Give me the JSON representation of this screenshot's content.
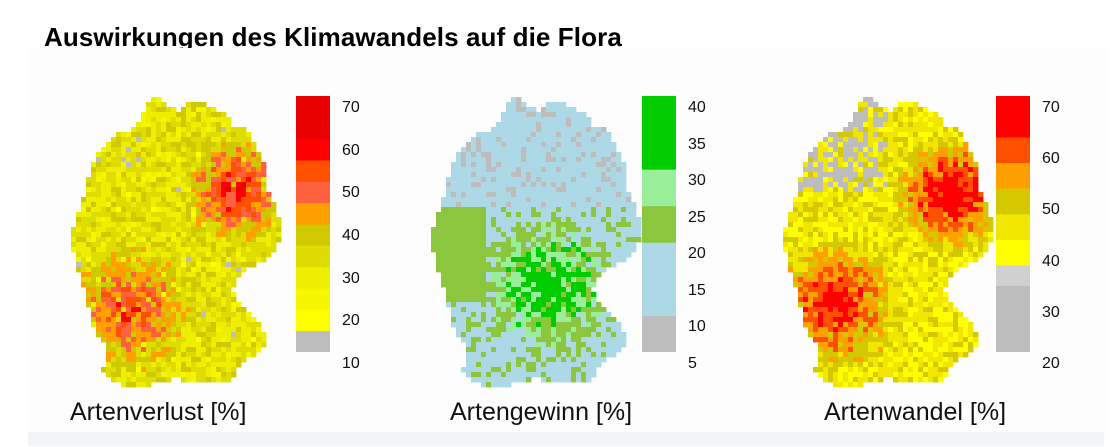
{
  "title": "Auswirkungen des Klimawandels auf die Flora",
  "maps": [
    {
      "caption": "Artenverlust [%]",
      "colormap": {
        "scale_min": 10,
        "scale_max": 70,
        "tick_labels": [
          "70",
          "60",
          "50",
          "40",
          "30",
          "20",
          "10"
        ],
        "classes": [
          {
            "from": 10,
            "to": 15,
            "color": "#bdbdbd"
          },
          {
            "from": 15,
            "to": 20,
            "color": "#ffff00"
          },
          {
            "from": 20,
            "to": 25,
            "color": "#f6f600"
          },
          {
            "from": 25,
            "to": 30,
            "color": "#eeee00"
          },
          {
            "from": 30,
            "to": 35,
            "color": "#dedc00"
          },
          {
            "from": 35,
            "to": 40,
            "color": "#d0c800"
          },
          {
            "from": 40,
            "to": 45,
            "color": "#ffa000"
          },
          {
            "from": 45,
            "to": 50,
            "color": "#ff6040"
          },
          {
            "from": 50,
            "to": 55,
            "color": "#ff5000"
          },
          {
            "from": 55,
            "to": 60,
            "color": "#ff0000"
          },
          {
            "from": 60,
            "to": 70,
            "color": "#e80000"
          }
        ]
      }
    },
    {
      "caption": "Artengewinn [%]",
      "colormap": {
        "scale_min": 5,
        "scale_max": 40,
        "tick_labels": [
          "40",
          "35",
          "30",
          "25",
          "20",
          "15",
          "10",
          "5"
        ],
        "classes": [
          {
            "from": 2,
            "to": 10,
            "color": "#bdbdbd"
          },
          {
            "from": 10,
            "to": 20,
            "color": "#add8e6"
          },
          {
            "from": 20,
            "to": 25,
            "color": "#8cc63f"
          },
          {
            "from": 25,
            "to": 30,
            "color": "#99ee99"
          },
          {
            "from": 30,
            "to": 42,
            "color": "#00cc00"
          }
        ]
      }
    },
    {
      "caption": "Artenwandel [%]",
      "colormap": {
        "scale_min": 20,
        "scale_max": 70,
        "tick_labels": [
          "70",
          "60",
          "50",
          "40",
          "30",
          "20"
        ],
        "classes": [
          {
            "from": 17,
            "to": 33,
            "color": "#bdbdbd"
          },
          {
            "from": 33,
            "to": 37,
            "color": "#d0d0d0"
          },
          {
            "from": 37,
            "to": 42,
            "color": "#ffff00"
          },
          {
            "from": 42,
            "to": 47,
            "color": "#f0e600"
          },
          {
            "from": 47,
            "to": 52,
            "color": "#d4c800"
          },
          {
            "from": 52,
            "to": 57,
            "color": "#ffa000"
          },
          {
            "from": 57,
            "to": 62,
            "color": "#ff5000"
          },
          {
            "from": 62,
            "to": 77,
            "color": "#ff0000"
          }
        ]
      }
    }
  ]
}
